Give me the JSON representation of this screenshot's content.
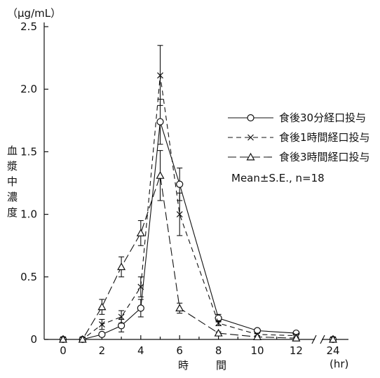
{
  "chart_data": {
    "type": "line",
    "y_unit_label": "（μg/mL）",
    "ylabel": "血漿中濃度",
    "xlabel": "時　間",
    "x_unit_label": "(hr)",
    "ylim": [
      0,
      2.5
    ],
    "yticks": [
      "0",
      "0.5",
      "1.0",
      "1.5",
      "2.0",
      "2.5"
    ],
    "yticks_values": [
      0,
      0.5,
      1.0,
      1.5,
      2.0,
      2.5
    ],
    "xticks": [
      "0",
      "2",
      "4",
      "6",
      "8",
      "10",
      "12",
      "24"
    ],
    "axis_break_between": [
      12,
      24
    ],
    "grid": false,
    "legend_placement": "right",
    "annotation": "Mean±S.E., n=18",
    "series": [
      {
        "name": "食後30分経口投与",
        "marker": "circle",
        "dash": "solid",
        "x": [
          0,
          1,
          2,
          3,
          4,
          5,
          6,
          8,
          10,
          12,
          24
        ],
        "y": [
          0,
          0,
          0.04,
          0.11,
          0.25,
          1.74,
          1.24,
          0.17,
          0.07,
          0.05,
          0
        ],
        "se": [
          0,
          0,
          0.01,
          0.05,
          0.07,
          0.18,
          0.13,
          0.03,
          0.01,
          0.01,
          0
        ]
      },
      {
        "name": "食後1時間経口投与",
        "marker": "x",
        "dash": "dash",
        "x": [
          0,
          1,
          2,
          3,
          4,
          5,
          6,
          8,
          10,
          12,
          24
        ],
        "y": [
          0,
          0,
          0.12,
          0.18,
          0.42,
          2.11,
          1.0,
          0.13,
          0.04,
          0.03,
          0
        ],
        "se": [
          0,
          0,
          0.04,
          0.05,
          0.08,
          0.24,
          0.17,
          0.02,
          0.01,
          0.01,
          0
        ]
      },
      {
        "name": "食後3時間経口投与",
        "marker": "triangle",
        "dash": "longdash",
        "x": [
          0,
          1,
          2,
          3,
          4,
          5,
          6,
          8,
          10,
          12,
          24
        ],
        "y": [
          0,
          0,
          0.26,
          0.58,
          0.85,
          1.31,
          0.25,
          0.05,
          0.02,
          0.01,
          0
        ],
        "se": [
          0,
          0,
          0.06,
          0.08,
          0.1,
          0.2,
          0.04,
          0.01,
          0.01,
          0.01,
          0
        ]
      }
    ]
  }
}
